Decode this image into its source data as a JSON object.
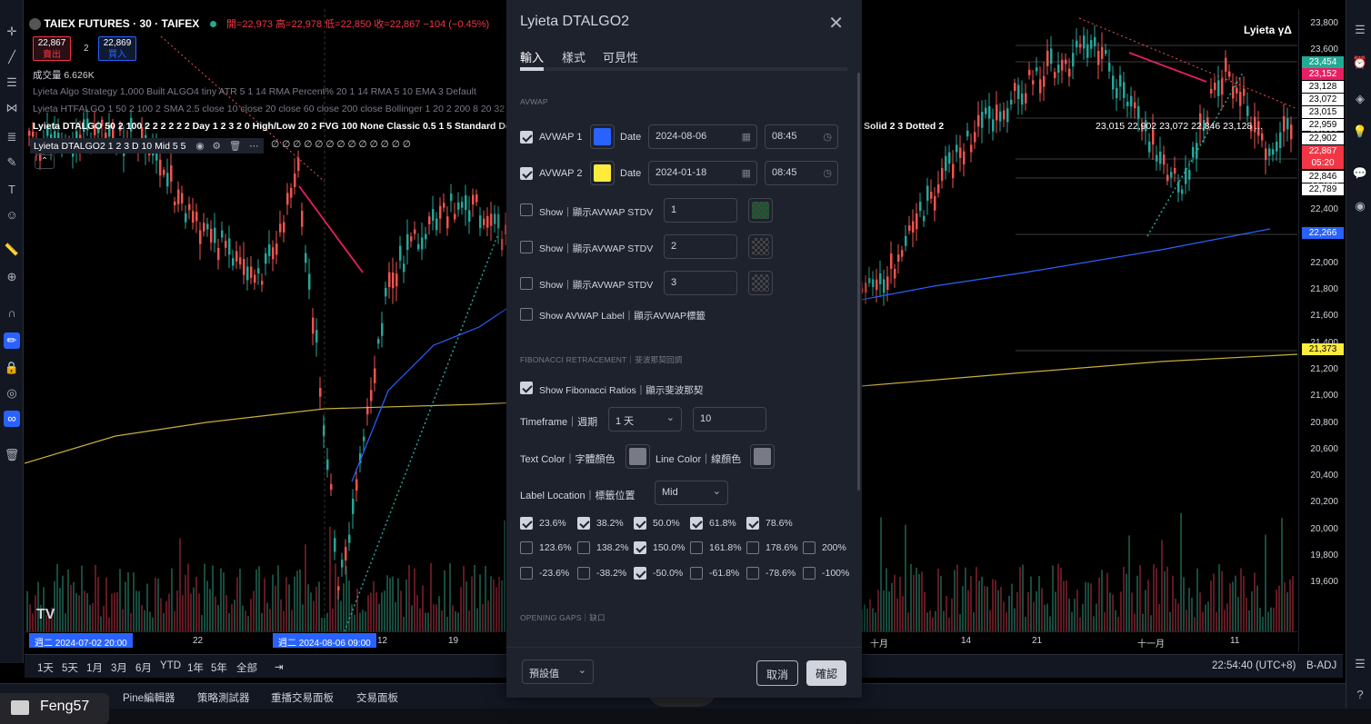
{
  "chart": {
    "symbol": "TAIEX FUTURES · 30 · TAIFEX",
    "ohlc": "開=22,973 高=22,978 低=22,850 收=22,867 −104 (−0.45%)",
    "sell_price": "22,867",
    "sell_label": "賣出",
    "spread": "2",
    "buy_price": "22,869",
    "buy_label": "買入",
    "volume": "成交量 6.626K",
    "indicators": [
      "Lyieta Algo Strategy 1,000 Built ALGO4 tiny ATR 5 1 14 RMA Percent% 20 1 14 RMA 5 10 EMA 3 Default",
      "Lyieta HTFALGO 1 50 2 100 2 SMA 2.5 close 10 close 20 close 60 close 200 close Bollinger 1 20 2 200 8 20 32 2",
      "Lyieta DTALGO 50 2 100 2 2 2 2 2 2 Day 1 2 3 2 0 High/Low 20 2 FVG 100 None Classic 0.5 1 5 Standard Dotted",
      "Lyieta DTALGO2 1 2 3 D 10 Mid 5 5"
    ],
    "indicator_values": "∅ ∅ ∅ ∅ ∅ ∅ ∅ ∅ ∅ ∅ ∅ ∅ ∅",
    "right_overlay": "Solid 2 3 Dotted 2",
    "right_values": "23,015  22,902  23,072  22,846  23,128  ...",
    "watermark": "Lyieta γΔ",
    "price_ticks": [
      "23,800",
      "23,600",
      "23,400",
      "23,200",
      "23,000",
      "22,800",
      "22,600",
      "22,400",
      "22,200",
      "22,000",
      "21,800",
      "21,600",
      "21,400",
      "21,200",
      "21,000",
      "20,800",
      "20,600",
      "20,400",
      "20,200",
      "20,000",
      "19,800",
      "19,600"
    ],
    "price_tags": [
      {
        "text": "23,454",
        "bg": "#22ab94"
      },
      {
        "text": "23,152",
        "bg": "#e91e63"
      },
      {
        "text": "23,128",
        "bg": "#ffffff",
        "fg": "#000"
      },
      {
        "text": "23,072",
        "bg": "#ffffff",
        "fg": "#000"
      },
      {
        "text": "23,015",
        "bg": "#ffffff",
        "fg": "#000"
      },
      {
        "text": "22,959",
        "bg": "#ffffff",
        "fg": "#000"
      },
      {
        "text": "22,902",
        "bg": "#ffffff",
        "fg": "#000"
      },
      {
        "text": "22,867",
        "bg": "#f23645"
      },
      {
        "text": "05:20",
        "bg": "#f23645"
      },
      {
        "text": "22,846",
        "bg": "#ffffff",
        "fg": "#000"
      },
      {
        "text": "22,789",
        "bg": "#ffffff",
        "fg": "#000"
      },
      {
        "text": "22,266",
        "bg": "#2962ff"
      },
      {
        "text": "21,373",
        "bg": "#ffeb3b",
        "fg": "#000"
      }
    ],
    "time_ticks": [
      "22",
      "12",
      "19",
      "十月",
      "14",
      "21",
      "十一月",
      "11"
    ],
    "time_badge_1": "週二  2024-07-02  20:00",
    "time_badge_2": "週二  2024-08-06  09:00"
  },
  "range_bar": {
    "ranges": [
      "1天",
      "5天",
      "1月",
      "3月",
      "6月",
      "YTD",
      "1年",
      "5年",
      "全部"
    ],
    "clock": "22:54:40 (UTC+8)",
    "adj": "B-ADJ"
  },
  "bottom_tabs": [
    "Pine編輯器",
    "策略測試器",
    "重播交易面板",
    "交易面板"
  ],
  "user": {
    "name": "Feng57"
  },
  "dialog": {
    "title": "Lyieta DTALGO2",
    "tabs": [
      "輸入",
      "樣式",
      "可見性"
    ],
    "avwap_section": "AVWAP",
    "avwap1": {
      "label": "AVWAP 1",
      "color": "#2962ff",
      "date_label": "Date",
      "date": "2024-08-06",
      "time": "08:45"
    },
    "avwap2": {
      "label": "AVWAP 2",
      "color": "#ffeb3b",
      "date_label": "Date",
      "date": "2024-01-18",
      "time": "08:45"
    },
    "stdv": [
      {
        "label": "Show｜顯示AVWAP STDV",
        "value": "1",
        "color": "#0f5a2a"
      },
      {
        "label": "Show｜顯示AVWAP STDV",
        "value": "2",
        "color": "checker"
      },
      {
        "label": "Show｜顯示AVWAP STDV",
        "value": "3",
        "color": "checker"
      }
    ],
    "show_label": "Show AVWAP Label｜顯示AVWAP標籤",
    "fib_section": "FIBONACCI RETRACEMENT｜斐波那契回調",
    "fib_show": "Show Fibonacci Ratios｜顯示斐波那契",
    "timeframe_label": "Timeframe｜週期",
    "timeframe_value": "1 天",
    "timeframe_length": "10",
    "text_color_label": "Text Color｜字體顏色",
    "line_color_label": "Line Color｜線顏色",
    "label_loc_label": "Label Location｜標籤位置",
    "label_loc_value": "Mid",
    "fib_levels": [
      [
        {
          "t": "23.6%",
          "on": true
        },
        {
          "t": "38.2%",
          "on": true
        },
        {
          "t": "50.0%",
          "on": true
        },
        {
          "t": "61.8%",
          "on": true
        },
        {
          "t": "78.6%",
          "on": true
        }
      ],
      [
        {
          "t": "123.6%",
          "on": false
        },
        {
          "t": "138.2%",
          "on": false
        },
        {
          "t": "150.0%",
          "on": true
        },
        {
          "t": "161.8%",
          "on": false
        },
        {
          "t": "178.6%",
          "on": false
        },
        {
          "t": "200%",
          "on": false
        }
      ],
      [
        {
          "t": "-23.6%",
          "on": false
        },
        {
          "t": "-38.2%",
          "on": false
        },
        {
          "t": "-50.0%",
          "on": true
        },
        {
          "t": "-61.8%",
          "on": false
        },
        {
          "t": "-78.6%",
          "on": false
        },
        {
          "t": "-100%",
          "on": false
        }
      ]
    ],
    "gaps_section": "OPENING GAPS｜缺口",
    "defaults": "預設值",
    "cancel": "取消",
    "ok": "確認"
  }
}
